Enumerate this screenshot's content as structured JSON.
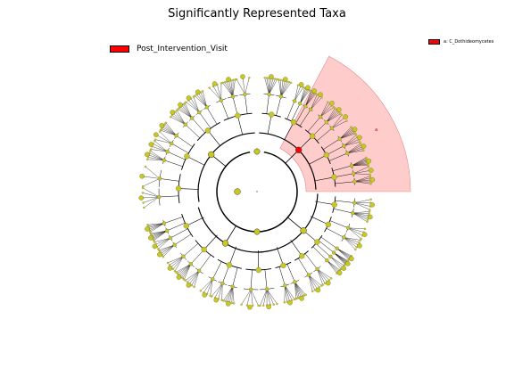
{
  "title": "Significantly Represented Taxa",
  "legend": {
    "class_label": "Post_Intervention_Visit",
    "class_color": "#ff0000"
  },
  "clade_legend": {
    "entries": [
      {
        "label": "a: C_Dothideomycetes",
        "color": "#ff0000"
      }
    ]
  },
  "cladogram": {
    "node_color": "#c8c820",
    "highlight_color": "#ff0000",
    "highlight_fill": "#ffcccc",
    "highlight_clade_letter": "a"
  }
}
